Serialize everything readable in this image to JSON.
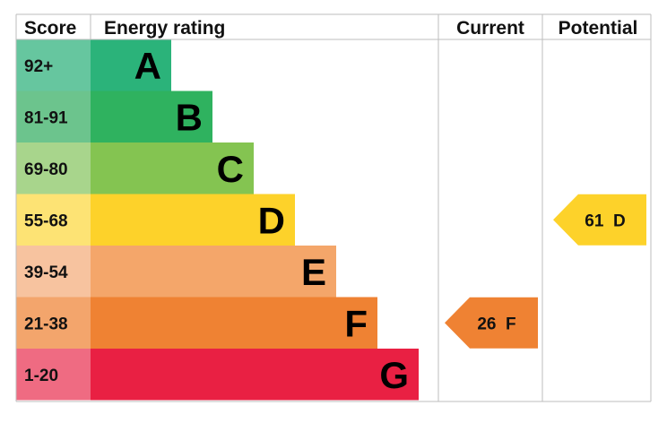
{
  "headers": {
    "score": "Score",
    "rating": "Energy rating",
    "current": "Current",
    "potential": "Potential"
  },
  "chart_data": {
    "type": "bar",
    "bands": [
      {
        "letter": "A",
        "range": "92+",
        "bar_color": "#2bb37a",
        "score_color": "#66c69f"
      },
      {
        "letter": "B",
        "range": "81-91",
        "bar_color": "#2fb25f",
        "score_color": "#6cc48d"
      },
      {
        "letter": "C",
        "range": "69-80",
        "bar_color": "#84c451",
        "score_color": "#a8d58c"
      },
      {
        "letter": "D",
        "range": "55-68",
        "bar_color": "#fdd22a",
        "score_color": "#fde374"
      },
      {
        "letter": "E",
        "range": "39-54",
        "bar_color": "#f4a66a",
        "score_color": "#f7c39f"
      },
      {
        "letter": "F",
        "range": "21-38",
        "bar_color": "#ef8233",
        "score_color": "#f3a56c"
      },
      {
        "letter": "G",
        "range": "1-20",
        "bar_color": "#e92043",
        "score_color": "#ef6b82"
      }
    ],
    "current": {
      "value": 26,
      "band": "F",
      "label": "26  F",
      "color": "#ef8233"
    },
    "potential": {
      "value": 61,
      "band": "D",
      "label": "61  D",
      "color": "#fdd22a"
    }
  }
}
